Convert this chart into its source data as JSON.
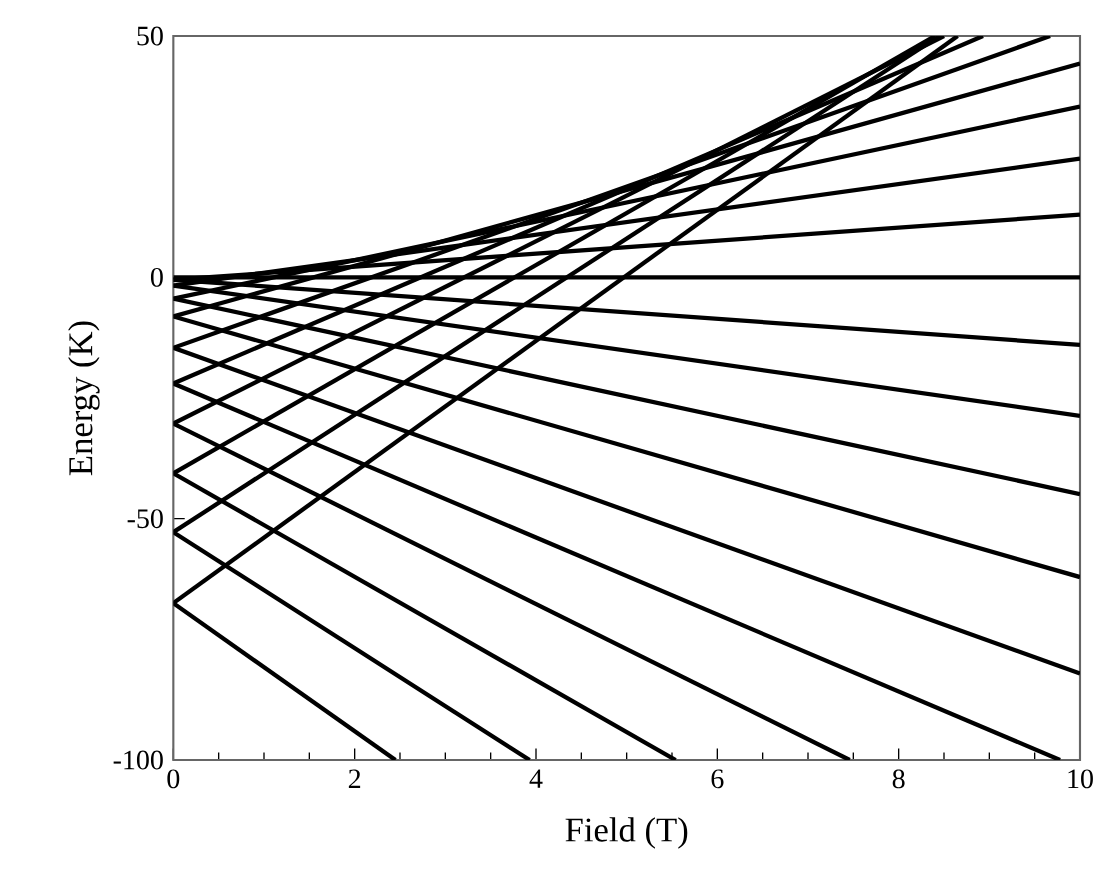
{
  "chart_data": {
    "type": "line",
    "xlabel": "Field (T)",
    "ylabel": "Energy (K)",
    "xlim": [
      0,
      10
    ],
    "ylim": [
      -100,
      50
    ],
    "xticks": [
      0,
      2,
      4,
      6,
      8,
      10
    ],
    "yticks": [
      -100,
      -50,
      0,
      50
    ],
    "marker": "none",
    "line_style": "solid",
    "series": [
      {
        "color": "#000000",
        "x": [
          0,
          10
        ],
        "values": [
          0,
          0
        ]
      },
      {
        "color": "#000000",
        "x": [
          0,
          10
        ],
        "values": [
          -0.5,
          -14.0
        ]
      },
      {
        "color": "#000000",
        "x": [
          0,
          10
        ],
        "values": [
          -1.7,
          -28.7
        ]
      },
      {
        "color": "#000000",
        "x": [
          0,
          10
        ],
        "values": [
          -4.4,
          -44.9
        ]
      },
      {
        "color": "#000000",
        "x": [
          0,
          10
        ],
        "values": [
          -8.1,
          -62.1
        ]
      },
      {
        "color": "#000000",
        "x": [
          0,
          10
        ],
        "values": [
          -14.6,
          -82.1
        ]
      },
      {
        "color": "#000000",
        "x": [
          0,
          9.78
        ],
        "values": [
          -22,
          -100
        ]
      },
      {
        "color": "#000000",
        "x": [
          0,
          7.46
        ],
        "values": [
          -30.3,
          -100
        ]
      },
      {
        "color": "#000000",
        "x": [
          0,
          5.54
        ],
        "values": [
          -40.6,
          -100
        ]
      },
      {
        "color": "#000000",
        "x": [
          0,
          3.93
        ],
        "values": [
          -52.8,
          -100
        ]
      },
      {
        "color": "#000000",
        "x": [
          0,
          2.45
        ],
        "values": [
          -67.5,
          -100
        ]
      },
      {
        "color": "#000000",
        "x": [
          0,
          10
        ],
        "values": [
          -0.5,
          13.0
        ]
      },
      {
        "color": "#000000",
        "x": [
          0,
          10
        ],
        "values": [
          -1.7,
          24.6
        ]
      },
      {
        "color": "#000000",
        "x": [
          0,
          10
        ],
        "values": [
          -4.4,
          35.4
        ]
      },
      {
        "color": "#000000",
        "x": [
          0,
          10
        ],
        "values": [
          -8.1,
          44.3
        ]
      },
      {
        "color": "#000000",
        "x": [
          0,
          9.67
        ],
        "values": [
          -14.6,
          50
        ]
      },
      {
        "color": "#000000",
        "x": [
          0,
          8.93
        ],
        "values": [
          -22,
          50
        ]
      },
      {
        "color": "#000000",
        "x": [
          0,
          8.5
        ],
        "values": [
          -30.3,
          50
        ]
      },
      {
        "color": "#000000",
        "x": [
          0,
          8.4
        ],
        "values": [
          -40.6,
          50
        ]
      },
      {
        "color": "#000000",
        "x": [
          0,
          8.45
        ],
        "values": [
          -52.8,
          50
        ]
      },
      {
        "color": "#000000",
        "x": [
          0,
          8.65
        ],
        "values": [
          -67.5,
          50
        ]
      }
    ]
  }
}
